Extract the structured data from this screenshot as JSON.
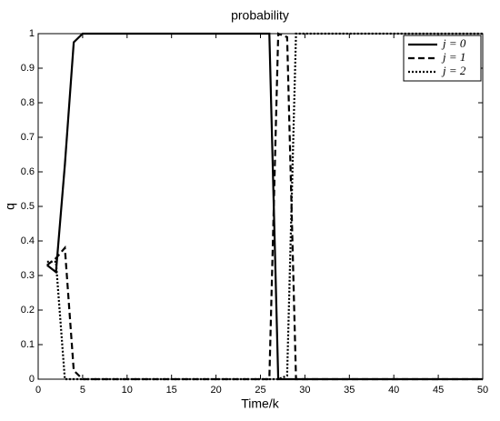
{
  "chart_data": {
    "type": "line",
    "title": "probability",
    "x_label": "Time/k",
    "y_label": "q",
    "x": [
      1,
      2,
      3,
      4,
      5,
      6,
      7,
      8,
      9,
      10,
      11,
      12,
      13,
      14,
      15,
      16,
      17,
      18,
      19,
      20,
      21,
      22,
      23,
      24,
      25,
      26,
      27,
      28,
      29,
      30,
      31,
      32,
      33,
      34,
      35,
      36,
      37,
      38,
      39,
      40,
      41,
      42,
      43,
      44,
      45,
      46,
      47,
      48,
      49,
      50
    ],
    "series": [
      {
        "name": "j = 0",
        "color": "#000000",
        "dash": "solid",
        "values": [
          0.33,
          0.31,
          0.62,
          0.975,
          1,
          1,
          1,
          1,
          1,
          1,
          1,
          1,
          1,
          1,
          1,
          1,
          1,
          1,
          1,
          1,
          1,
          1,
          1,
          1,
          1,
          1,
          0,
          0,
          0,
          0,
          0,
          0,
          0,
          0,
          0,
          0,
          0,
          0,
          0,
          0,
          0,
          0,
          0,
          0,
          0,
          0,
          0,
          0,
          0,
          0
        ]
      },
      {
        "name": "j = 1",
        "color": "#000000",
        "dash": "dashed",
        "values": [
          0.33,
          0.35,
          0.38,
          0.025,
          0,
          0,
          0,
          0,
          0,
          0,
          0,
          0,
          0,
          0,
          0,
          0,
          0,
          0,
          0,
          0,
          0,
          0,
          0,
          0,
          0,
          0,
          1,
          0.99,
          0,
          0,
          0,
          0,
          0,
          0,
          0,
          0,
          0,
          0,
          0,
          0,
          0,
          0,
          0,
          0,
          0,
          0,
          0,
          0,
          0,
          0
        ]
      },
      {
        "name": "j = 2",
        "color": "#000000",
        "dash": "dotted",
        "values": [
          0.34,
          0.34,
          0,
          0,
          0,
          0,
          0,
          0,
          0,
          0,
          0,
          0,
          0,
          0,
          0,
          0,
          0,
          0,
          0,
          0,
          0,
          0,
          0,
          0,
          0,
          0,
          0,
          0.01,
          1,
          1,
          1,
          1,
          1,
          1,
          1,
          1,
          1,
          1,
          1,
          1,
          1,
          1,
          1,
          1,
          1,
          1,
          1,
          1,
          1,
          1
        ]
      }
    ],
    "xlim": [
      0,
      50
    ],
    "ylim": [
      0,
      1
    ],
    "xticks": [
      0,
      5,
      10,
      15,
      20,
      25,
      30,
      35,
      40,
      45,
      50
    ],
    "yticks": [
      0,
      0.1,
      0.2,
      0.3,
      0.4,
      0.5,
      0.6,
      0.7,
      0.8,
      0.9,
      1
    ],
    "legend": "upper right"
  }
}
